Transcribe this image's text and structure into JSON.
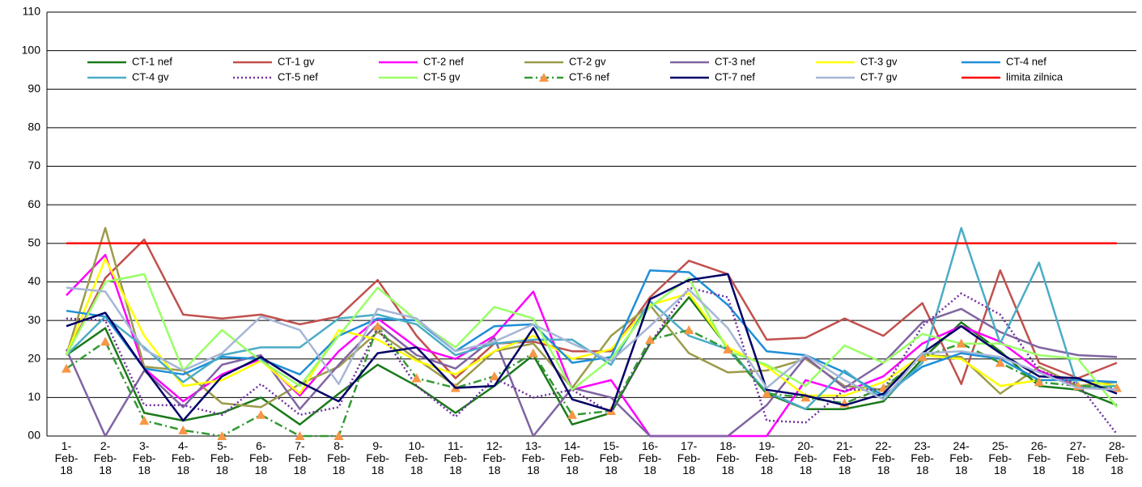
{
  "chart_data": {
    "type": "line",
    "categories": [
      "1-Feb-18",
      "2-Feb-18",
      "3-Feb-18",
      "4-Feb-18",
      "5-Feb-18",
      "6-Feb-18",
      "7-Feb-18",
      "8-Feb-18",
      "9-Feb-18",
      "10-Feb-18",
      "11-Feb-18",
      "12-Feb-18",
      "13-Feb-18",
      "14-Feb-18",
      "15-Feb-18",
      "16-Feb-18",
      "17-Feb-18",
      "18-Feb-18",
      "19-Feb-18",
      "20-Feb-18",
      "21-Feb-18",
      "22-Feb-18",
      "23-Feb-18",
      "24-Feb-18",
      "25-Feb-18",
      "26-Feb-18",
      "27-Feb-18",
      "28-Feb-18"
    ],
    "ylim": [
      0,
      110
    ],
    "yticks": [
      {
        "value": 0,
        "label": "00"
      },
      10,
      20,
      30,
      40,
      50,
      60,
      70,
      80,
      90,
      100,
      110
    ],
    "grid": true,
    "series": [
      {
        "name": "CT-1 nef",
        "color": "#1a7a1a",
        "values": [
          21,
          28,
          6,
          4,
          6,
          10,
          3,
          11,
          18.5,
          13,
          6,
          13,
          21,
          3,
          6,
          24,
          36,
          23,
          11,
          7,
          7,
          9,
          20,
          29.5,
          22,
          13,
          12,
          8
        ]
      },
      {
        "name": "CT-1 gv",
        "color": "#c0504d",
        "values": [
          21,
          41,
          51,
          31.5,
          30.5,
          31.5,
          29,
          31,
          40.5,
          26,
          15,
          24,
          24.5,
          22,
          22,
          36,
          45.5,
          42,
          25,
          25.5,
          30.5,
          26,
          34.5,
          13.5,
          43,
          19,
          15,
          19
        ]
      },
      {
        "name": "CT-2 nef",
        "color": "#ff00ff",
        "values": [
          36.5,
          47,
          17.5,
          9,
          16,
          20,
          10.5,
          22,
          30.5,
          23,
          20,
          26,
          37.5,
          12,
          14.5,
          0,
          0,
          0,
          0,
          14.5,
          11.5,
          15.5,
          24,
          28.5,
          24.5,
          17,
          13,
          12
        ]
      },
      {
        "name": "CT-2 gv",
        "color": "#9b9b4b",
        "values": [
          21,
          54,
          18,
          17,
          8.5,
          7.5,
          13.5,
          18,
          27,
          20,
          13,
          22,
          24,
          12.5,
          26,
          34,
          21.5,
          16.5,
          17,
          20,
          13,
          12,
          21,
          20.5,
          11,
          18,
          13,
          14
        ]
      },
      {
        "name": "CT-3 nef",
        "color": "#8064a2",
        "values": [
          22.5,
          0,
          17,
          7.5,
          18.5,
          21,
          7,
          18.5,
          29,
          21,
          17.5,
          25.5,
          0,
          12.5,
          10,
          0,
          0,
          0,
          8,
          20.5,
          12.5,
          19,
          29.5,
          33,
          27,
          23,
          21,
          20.5
        ]
      },
      {
        "name": "CT-3 gv",
        "color": "#ffff00",
        "values": [
          21,
          46,
          26,
          13,
          14.5,
          19.5,
          11,
          27.5,
          25,
          19.5,
          16,
          22,
          26,
          20,
          22.5,
          34,
          37,
          23,
          18,
          10.5,
          10.5,
          14,
          21,
          20,
          13,
          14.5,
          14.5,
          13
        ]
      },
      {
        "name": "CT-4 nef",
        "color": "#1f8fd8",
        "values": [
          32.5,
          31,
          17.5,
          16,
          20.5,
          20,
          16,
          26,
          30.5,
          30,
          22,
          28.5,
          29,
          19,
          20.5,
          43,
          42.5,
          34,
          22,
          21,
          16.5,
          10.5,
          18,
          21.5,
          20,
          14.5,
          14.5,
          14
        ]
      },
      {
        "name": "CT-4 gv",
        "color": "#4bacc6",
        "values": [
          21,
          31,
          23,
          14,
          21,
          23,
          23,
          30.5,
          31.5,
          29,
          21,
          24,
          25,
          25,
          18.5,
          35,
          26,
          22.5,
          11.5,
          7,
          17,
          9.5,
          19,
          54,
          24,
          45,
          12.5,
          13
        ]
      },
      {
        "name": "CT-5 nef",
        "color": "#7030a0",
        "line_style": "dotted",
        "values": [
          30.5,
          30,
          8,
          8,
          5.5,
          13.5,
          5.5,
          7.5,
          28,
          13,
          5,
          15,
          10,
          12,
          6,
          24,
          38.5,
          36,
          4,
          3.5,
          12,
          12,
          28.5,
          37,
          31.5,
          17,
          13.5,
          0.5
        ]
      },
      {
        "name": "CT-5 gv",
        "color": "#99ff66",
        "values": [
          21,
          40,
          42,
          17,
          27.5,
          19.5,
          13,
          26,
          38.5,
          30,
          23,
          33.5,
          30.5,
          12,
          20,
          33.5,
          41,
          22,
          18.5,
          13,
          23.5,
          19,
          26.5,
          24,
          24,
          21,
          20,
          7.5
        ]
      },
      {
        "name": "CT-6 nef",
        "color": "#339933",
        "line_style": "dash-dot",
        "marker": "triangle",
        "marker_color": "#f79646",
        "values": [
          17.5,
          24.5,
          4,
          1.5,
          0,
          5.5,
          0,
          0,
          28.5,
          15,
          12.5,
          15.5,
          21.5,
          5.5,
          6.5,
          25,
          27.5,
          22.5,
          11,
          10,
          8.5,
          12.5,
          20.5,
          24,
          19,
          14,
          13,
          12.5
        ]
      },
      {
        "name": "CT-7 nef",
        "color": "#000066",
        "values": [
          28.5,
          32,
          17.5,
          4,
          15.5,
          20.5,
          14,
          9,
          21.5,
          23,
          12.5,
          13,
          28,
          9.5,
          6.5,
          35.5,
          40.5,
          42,
          12,
          10.5,
          8,
          11,
          21.5,
          28.5,
          21.5,
          15.5,
          15,
          11
        ]
      },
      {
        "name": "CT-7 gv",
        "color": "#a6b6d6",
        "values": [
          38.5,
          37.5,
          22.5,
          17,
          21.5,
          31,
          27.5,
          13.5,
          33,
          30.5,
          22,
          24.5,
          29,
          24,
          19.5,
          28.5,
          38,
          28,
          12.5,
          21,
          14.5,
          9.5,
          21.5,
          22,
          20.5,
          16.5,
          12.5,
          12
        ]
      },
      {
        "name": "limita zilnica",
        "color": "#ff0000",
        "values": [
          50,
          50,
          50,
          50,
          50,
          50,
          50,
          50,
          50,
          50,
          50,
          50,
          50,
          50,
          50,
          50,
          50,
          50,
          50,
          50,
          50,
          50,
          50,
          50,
          50,
          50,
          50,
          50
        ]
      }
    ]
  }
}
